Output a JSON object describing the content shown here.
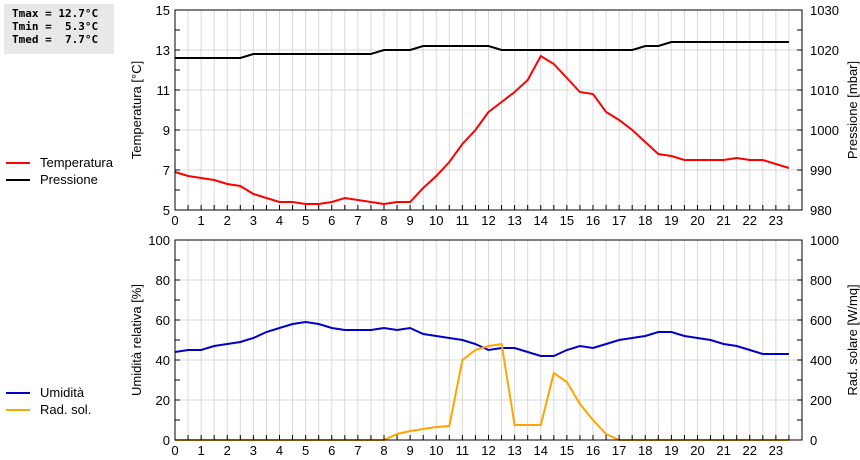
{
  "stats": {
    "tmax": "Tmax = 12.7°C",
    "tmin": "Tmin =  5.3°C",
    "tmed": "Tmed =  7.7°C"
  },
  "legend_top": [
    {
      "label": "Temperatura",
      "color": "#ff0000"
    },
    {
      "label": "Pressione",
      "color": "#000000"
    }
  ],
  "legend_bottom": [
    {
      "label": "Umidità",
      "color": "#0000cc"
    },
    {
      "label": "Rad. sol.",
      "color": "#ffa500"
    }
  ],
  "chart_data": [
    {
      "type": "line",
      "title": "",
      "xlabel": "",
      "ylabel": "Temperatura [°C]",
      "y2label": "Pressione [mbar]",
      "ylim": [
        5,
        15
      ],
      "y2lim": [
        980,
        1030
      ],
      "yticks": [
        5,
        7,
        9,
        11,
        13,
        15
      ],
      "y2ticks": [
        980,
        990,
        1000,
        1010,
        1020,
        1030
      ],
      "xticks": [
        0,
        1,
        2,
        3,
        4,
        5,
        6,
        7,
        8,
        9,
        10,
        11,
        12,
        13,
        14,
        15,
        16,
        17,
        18,
        19,
        20,
        21,
        22,
        23
      ],
      "grid": true,
      "x": [
        0,
        0.5,
        1,
        1.5,
        2,
        2.5,
        3,
        3.5,
        4,
        4.5,
        5,
        5.5,
        6,
        6.5,
        7,
        7.5,
        8,
        8.5,
        9,
        9.5,
        10,
        10.5,
        11,
        11.5,
        12,
        12.5,
        13,
        13.5,
        14,
        14.5,
        15,
        15.5,
        16,
        16.5,
        17,
        17.5,
        18,
        18.5,
        19,
        19.5,
        20,
        20.5,
        21,
        21.5,
        22,
        22.5,
        23,
        23.5
      ],
      "series": [
        {
          "name": "Temperatura",
          "axis": "left",
          "color": "#ff0000",
          "values": [
            6.9,
            6.7,
            6.6,
            6.5,
            6.3,
            6.2,
            5.8,
            5.6,
            5.4,
            5.4,
            5.3,
            5.3,
            5.4,
            5.6,
            5.5,
            5.4,
            5.3,
            5.4,
            5.4,
            6.1,
            6.7,
            7.4,
            8.3,
            9.0,
            9.9,
            10.4,
            10.9,
            11.5,
            12.7,
            12.3,
            11.6,
            10.9,
            10.8,
            9.9,
            9.5,
            9.0,
            8.4,
            7.8,
            7.7,
            7.5,
            7.5,
            7.5,
            7.5,
            7.6,
            7.5,
            7.5,
            7.3,
            7.1
          ]
        },
        {
          "name": "Pressione",
          "axis": "right",
          "color": "#000000",
          "values": [
            1018,
            1018,
            1018,
            1018,
            1018,
            1018,
            1019,
            1019,
            1019,
            1019,
            1019,
            1019,
            1019,
            1019,
            1019,
            1019,
            1020,
            1020,
            1020,
            1021,
            1021,
            1021,
            1021,
            1021,
            1021,
            1020,
            1020,
            1020,
            1020,
            1020,
            1020,
            1020,
            1020,
            1020,
            1020,
            1020,
            1021,
            1021,
            1022,
            1022,
            1022,
            1022,
            1022,
            1022,
            1022,
            1022,
            1022,
            1022
          ]
        }
      ]
    },
    {
      "type": "line",
      "title": "",
      "xlabel": "",
      "ylabel": "Umidità relativa [%]",
      "y2label": "Rad. solare [W/mq]",
      "ylim": [
        0,
        100
      ],
      "y2lim": [
        0,
        1000
      ],
      "yticks": [
        0,
        20,
        40,
        60,
        80,
        100
      ],
      "y2ticks": [
        0,
        200,
        400,
        600,
        800,
        1000
      ],
      "xticks": [
        0,
        1,
        2,
        3,
        4,
        5,
        6,
        7,
        8,
        9,
        10,
        11,
        12,
        13,
        14,
        15,
        16,
        17,
        18,
        19,
        20,
        21,
        22,
        23
      ],
      "grid": true,
      "x": [
        0,
        0.5,
        1,
        1.5,
        2,
        2.5,
        3,
        3.5,
        4,
        4.5,
        5,
        5.5,
        6,
        6.5,
        7,
        7.5,
        8,
        8.5,
        9,
        9.5,
        10,
        10.5,
        11,
        11.5,
        12,
        12.5,
        13,
        13.5,
        14,
        14.5,
        15,
        15.5,
        16,
        16.5,
        17,
        17.5,
        18,
        18.5,
        19,
        19.5,
        20,
        20.5,
        21,
        21.5,
        22,
        22.5,
        23,
        23.5
      ],
      "series": [
        {
          "name": "Umidità",
          "axis": "left",
          "color": "#0000cc",
          "values": [
            44,
            45,
            45,
            47,
            48,
            49,
            51,
            54,
            56,
            58,
            59,
            58,
            56,
            55,
            55,
            55,
            56,
            55,
            56,
            53,
            52,
            51,
            50,
            48,
            45,
            46,
            46,
            44,
            42,
            42,
            45,
            47,
            46,
            48,
            50,
            51,
            52,
            54,
            54,
            52,
            51,
            50,
            48,
            47,
            45,
            43,
            43,
            43
          ]
        },
        {
          "name": "Rad. sol.",
          "axis": "right",
          "color": "#ffa500",
          "values": [
            0,
            0,
            0,
            0,
            0,
            0,
            0,
            0,
            0,
            0,
            0,
            0,
            0,
            0,
            0,
            0,
            0,
            30,
            45,
            55,
            65,
            70,
            400,
            450,
            470,
            480,
            75,
            75,
            75,
            335,
            290,
            180,
            100,
            30,
            0,
            0,
            0,
            0,
            0,
            0,
            0,
            0,
            0,
            0,
            0,
            0,
            0,
            0
          ]
        }
      ]
    }
  ]
}
